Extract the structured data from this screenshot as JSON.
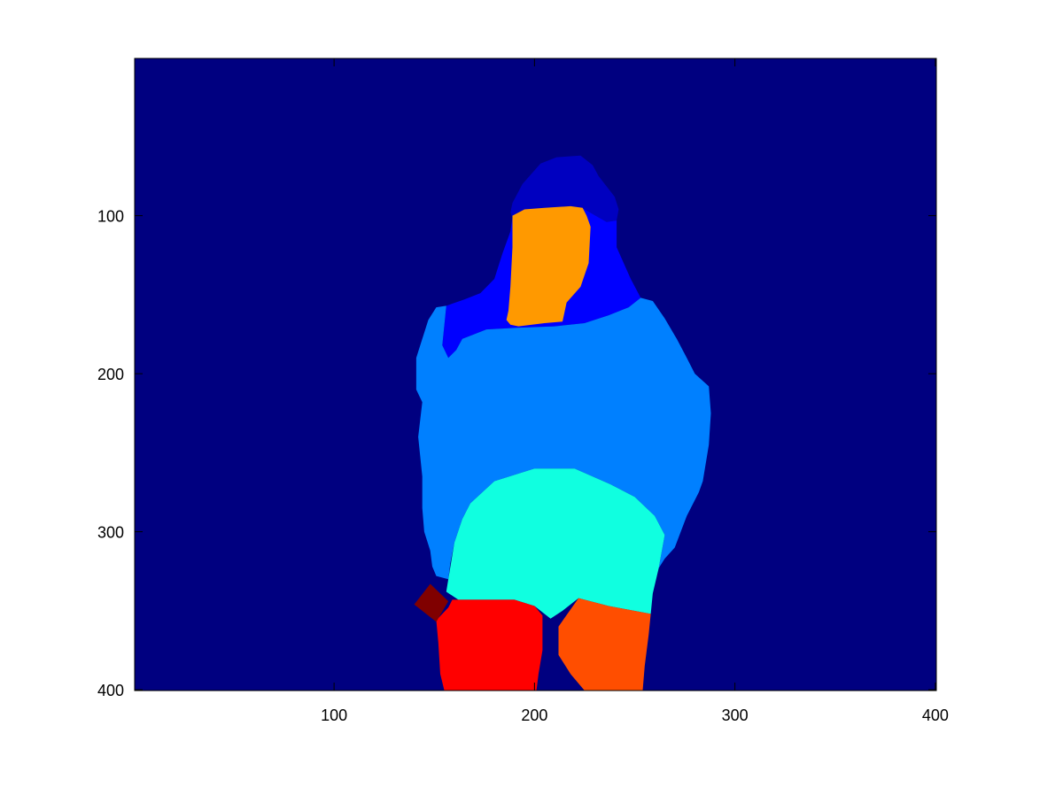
{
  "figure": {
    "background": "#ffffff",
    "axes_background": "#000080",
    "axes": {
      "xlim": [
        0.5,
        400.5
      ],
      "ylim": [
        0.5,
        400.5
      ],
      "y_reversed": true,
      "x_ticks": [
        {
          "value": 100,
          "label": "100"
        },
        {
          "value": 200,
          "label": "200"
        },
        {
          "value": 300,
          "label": "300"
        },
        {
          "value": 400,
          "label": "400"
        }
      ],
      "y_ticks": [
        {
          "value": 100,
          "label": "100"
        },
        {
          "value": 200,
          "label": "200"
        },
        {
          "value": 300,
          "label": "300"
        },
        {
          "value": 400,
          "label": "400"
        }
      ]
    },
    "regions": [
      {
        "name": "hair-region",
        "color": "#0000c0",
        "points": [
          [
            189,
            92
          ],
          [
            194,
            80
          ],
          [
            203,
            67
          ],
          [
            211,
            63
          ],
          [
            223,
            62
          ],
          [
            229,
            68
          ],
          [
            232,
            75
          ],
          [
            240,
            88
          ],
          [
            242,
            96
          ],
          [
            241,
            103
          ],
          [
            236,
            104
          ],
          [
            225,
            96
          ],
          [
            216,
            96
          ],
          [
            200,
            99
          ],
          [
            189,
            101
          ],
          [
            188,
            98
          ]
        ]
      },
      {
        "name": "neck-shoulder-region",
        "color": "#0000ff",
        "points": [
          [
            189,
            101
          ],
          [
            200,
            99
          ],
          [
            216,
            96
          ],
          [
            225,
            96
          ],
          [
            236,
            104
          ],
          [
            241,
            103
          ],
          [
            241,
            120
          ],
          [
            248,
            140
          ],
          [
            253,
            152
          ],
          [
            247,
            158
          ],
          [
            237,
            163
          ],
          [
            225,
            168
          ],
          [
            210,
            170
          ],
          [
            191,
            171
          ],
          [
            176,
            172
          ],
          [
            164,
            178
          ],
          [
            161,
            185
          ],
          [
            157,
            190
          ],
          [
            154,
            182
          ],
          [
            156,
            157
          ],
          [
            165,
            153
          ],
          [
            173,
            149
          ],
          [
            180,
            140
          ],
          [
            184,
            124
          ],
          [
            188,
            110
          ]
        ]
      },
      {
        "name": "torso-region",
        "color": "#0080ff",
        "points": [
          [
            156,
            157
          ],
          [
            154,
            182
          ],
          [
            157,
            190
          ],
          [
            161,
            185
          ],
          [
            164,
            178
          ],
          [
            176,
            172
          ],
          [
            191,
            171
          ],
          [
            210,
            170
          ],
          [
            225,
            168
          ],
          [
            237,
            163
          ],
          [
            247,
            158
          ],
          [
            253,
            152
          ],
          [
            259,
            154
          ],
          [
            265,
            165
          ],
          [
            271,
            178
          ],
          [
            276,
            190
          ],
          [
            280,
            200
          ],
          [
            287,
            208
          ],
          [
            288,
            225
          ],
          [
            287,
            245
          ],
          [
            284,
            268
          ],
          [
            282,
            275
          ],
          [
            276,
            290
          ],
          [
            273,
            300
          ],
          [
            270,
            310
          ],
          [
            265,
            317
          ],
          [
            262,
            323
          ],
          [
            265,
            302
          ],
          [
            260,
            290
          ],
          [
            250,
            278
          ],
          [
            238,
            270
          ],
          [
            220,
            260
          ],
          [
            200,
            260
          ],
          [
            180,
            268
          ],
          [
            168,
            282
          ],
          [
            164,
            292
          ],
          [
            160,
            307
          ],
          [
            158,
            320
          ],
          [
            157,
            330
          ],
          [
            151,
            328
          ],
          [
            149,
            322
          ],
          [
            148,
            312
          ],
          [
            145,
            300
          ],
          [
            144,
            285
          ],
          [
            144,
            265
          ],
          [
            142,
            240
          ],
          [
            144,
            218
          ],
          [
            141,
            210
          ],
          [
            141,
            190
          ],
          [
            144,
            178
          ],
          [
            147,
            166
          ],
          [
            151,
            158
          ]
        ]
      },
      {
        "name": "face-region",
        "color": "#ff9900",
        "points": [
          [
            189,
            100
          ],
          [
            195,
            96
          ],
          [
            205,
            95
          ],
          [
            218,
            94
          ],
          [
            224,
            95
          ],
          [
            226,
            100
          ],
          [
            228,
            107
          ],
          [
            227,
            130
          ],
          [
            223,
            145
          ],
          [
            216,
            155
          ],
          [
            214,
            167
          ],
          [
            205,
            168
          ],
          [
            192,
            170
          ],
          [
            188,
            169
          ],
          [
            186,
            166
          ],
          [
            187,
            160
          ],
          [
            188,
            145
          ],
          [
            189,
            120
          ]
        ]
      },
      {
        "name": "lower-torso-region",
        "color": "#10ffe0",
        "points": [
          [
            168,
            282
          ],
          [
            180,
            268
          ],
          [
            200,
            260
          ],
          [
            220,
            260
          ],
          [
            238,
            270
          ],
          [
            250,
            278
          ],
          [
            260,
            290
          ],
          [
            265,
            302
          ],
          [
            262,
            323
          ],
          [
            259,
            339
          ],
          [
            258,
            352
          ],
          [
            237,
            347
          ],
          [
            222,
            342
          ],
          [
            214,
            350
          ],
          [
            208,
            355
          ],
          [
            200,
            347
          ],
          [
            190,
            343
          ],
          [
            162,
            343
          ],
          [
            156,
            338
          ],
          [
            157,
            330
          ],
          [
            160,
            307
          ],
          [
            164,
            292
          ]
        ]
      },
      {
        "name": "left-leg-region",
        "color": "#ff0000",
        "points": [
          [
            159,
            343
          ],
          [
            190,
            343
          ],
          [
            200,
            347
          ],
          [
            204,
            353
          ],
          [
            204,
            375
          ],
          [
            202,
            390
          ],
          [
            201,
            400.5
          ],
          [
            155,
            400.5
          ],
          [
            153,
            390
          ],
          [
            152,
            370
          ],
          [
            151,
            356
          ],
          [
            157,
            348
          ]
        ]
      },
      {
        "name": "right-leg-region",
        "color": "#ff4e00",
        "points": [
          [
            212,
            360
          ],
          [
            222,
            342
          ],
          [
            237,
            347
          ],
          [
            258,
            352
          ],
          [
            257,
            365
          ],
          [
            255,
            385
          ],
          [
            254,
            400.5
          ],
          [
            225,
            400.5
          ],
          [
            218,
            390
          ],
          [
            212,
            378
          ]
        ]
      },
      {
        "name": "hand-region",
        "color": "#800000",
        "points": [
          [
            140,
            346
          ],
          [
            148,
            333
          ],
          [
            157,
            344
          ],
          [
            151,
            357
          ]
        ]
      }
    ]
  }
}
